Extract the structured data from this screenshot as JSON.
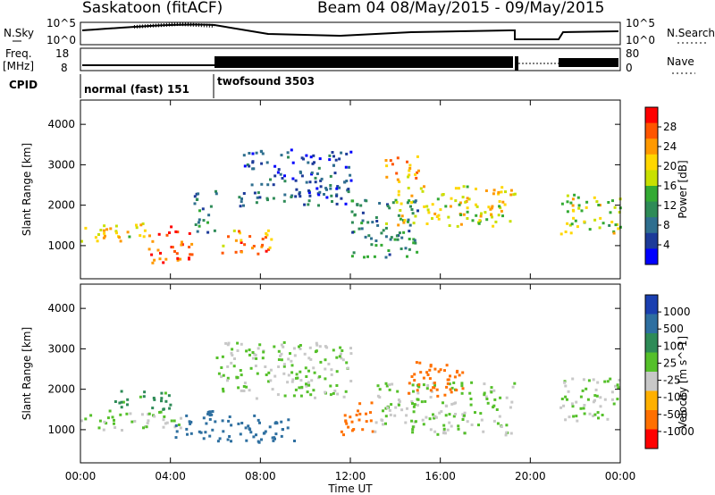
{
  "header": {
    "title": "Saskatoon (fitACF)",
    "beam": "Beam 04 08/May/2015 - 09/May/2015"
  },
  "noise_panel": {
    "left_label": "N.Sky",
    "right_label": "N.Search",
    "left_ticks": [
      "10^5",
      "10^0"
    ],
    "right_ticks": [
      "10^5",
      "10^0"
    ]
  },
  "freq_panel": {
    "left_label_1": "Freq.",
    "left_label_2": "[MHz]",
    "right_label": "Nave",
    "left_ticks": [
      "18",
      "8"
    ],
    "right_ticks": [
      "80",
      "0"
    ]
  },
  "cpid_panel": {
    "label": "CPID",
    "modes": [
      {
        "name": "normal (fast) 151",
        "start_hour": 0,
        "end_hour": 6
      },
      {
        "name": "twofsound 3503",
        "start_hour": 6,
        "end_hour": 24
      }
    ]
  },
  "x_axis": {
    "label": "Time UT",
    "ticks": [
      "00:00",
      "04:00",
      "08:00",
      "12:00",
      "16:00",
      "20:00",
      "00:00"
    ],
    "range_hours": [
      0,
      24
    ]
  },
  "power_colorbar": {
    "label": "Power [dB]",
    "ticks": [
      "28",
      "24",
      "20",
      "16",
      "12",
      "8",
      "4"
    ],
    "colors": [
      "#ff0000",
      "#ff5500",
      "#ff9900",
      "#ffd700",
      "#c8e000",
      "#33aa33",
      "#2e8b57",
      "#2f6f8f",
      "#1c3a99",
      "#0000ff"
    ]
  },
  "velocity_colorbar": {
    "label": "Velocity [m s^-1]",
    "ticks": [
      "1000",
      "500",
      "100",
      "25",
      "-25",
      "-100",
      "-500",
      "-1000"
    ],
    "colors": [
      "#1a3fb0",
      "#2e6fa0",
      "#2e8b57",
      "#55c02a",
      "#c8c8c8",
      "#ffb000",
      "#ff7000",
      "#ff0000"
    ]
  },
  "chart_data": [
    {
      "type": "heatmap",
      "title": "",
      "xlabel": "Time UT",
      "ylabel": "Slant Range [km]",
      "colorbar_label": "Power [dB]",
      "xlim": [
        0,
        24
      ],
      "ylim": [
        180,
        4600
      ],
      "yticks": [
        1000,
        2000,
        3000,
        4000
      ],
      "bands": [
        {
          "t0": 0.0,
          "t1": 3.0,
          "r0": 1100,
          "r1": 1600,
          "dB": 20
        },
        {
          "t0": 3.0,
          "t1": 5.0,
          "r0": 600,
          "r1": 1500,
          "dB": 28
        },
        {
          "t0": 5.0,
          "t1": 6.0,
          "r0": 1300,
          "r1": 2400,
          "dB": 10
        },
        {
          "t0": 6.0,
          "t1": 8.5,
          "r0": 800,
          "r1": 1400,
          "dB": 24
        },
        {
          "t0": 7.0,
          "t1": 12.0,
          "r0": 2000,
          "r1": 3400,
          "dB": 8
        },
        {
          "t0": 12.0,
          "t1": 15.0,
          "r0": 700,
          "r1": 2200,
          "dB": 12
        },
        {
          "t0": 13.5,
          "t1": 15.0,
          "r0": 2600,
          "r1": 3300,
          "dB": 24
        },
        {
          "t0": 14.0,
          "t1": 19.3,
          "r0": 1500,
          "r1": 2500,
          "dB": 20
        },
        {
          "t0": 21.3,
          "t1": 24.0,
          "r0": 1300,
          "r1": 2300,
          "dB": 18
        }
      ]
    },
    {
      "type": "heatmap",
      "title": "",
      "xlabel": "Time UT",
      "ylabel": "Slant Range [km]",
      "colorbar_label": "Velocity [m s^-1]",
      "xlim": [
        0,
        24
      ],
      "ylim": [
        180,
        4600
      ],
      "yticks": [
        1000,
        2000,
        3000,
        4000
      ],
      "bands": [
        {
          "t0": 0.0,
          "t1": 4.5,
          "r0": 1000,
          "r1": 1500,
          "v": 0
        },
        {
          "t0": 1.5,
          "t1": 4.0,
          "r0": 1500,
          "r1": 2000,
          "v": 100
        },
        {
          "t0": 4.0,
          "t1": 6.0,
          "r0": 800,
          "r1": 1500,
          "v": 500
        },
        {
          "t0": 6.0,
          "t1": 9.5,
          "r0": 700,
          "r1": 1400,
          "v": 500
        },
        {
          "t0": 6.0,
          "t1": 12.0,
          "r0": 1800,
          "r1": 3200,
          "v": 0
        },
        {
          "t0": 11.5,
          "t1": 13.0,
          "r0": 900,
          "r1": 1700,
          "v": -500
        },
        {
          "t0": 13.0,
          "t1": 19.3,
          "r0": 900,
          "r1": 2200,
          "v": 0
        },
        {
          "t0": 14.5,
          "t1": 17.0,
          "r0": 1800,
          "r1": 2700,
          "v": -500
        },
        {
          "t0": 21.3,
          "t1": 24.0,
          "r0": 1200,
          "r1": 2300,
          "v": 0
        }
      ]
    }
  ]
}
